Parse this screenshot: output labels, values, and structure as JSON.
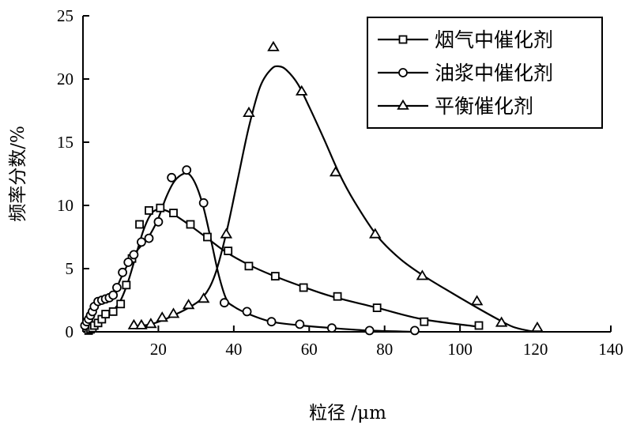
{
  "chart_data": {
    "type": "line",
    "xlabel": "粒径 /μm",
    "ylabel": "频率分数/%",
    "xlim": [
      0,
      140
    ],
    "ylim": [
      0,
      25
    ],
    "x_ticks": [
      20,
      40,
      60,
      80,
      100,
      120,
      140
    ],
    "y_ticks": [
      0,
      5,
      10,
      15,
      20,
      25
    ],
    "grid": false,
    "legend_position": "top-right",
    "series": [
      {
        "name": "烟气中催化剂",
        "marker": "square",
        "x": [
          1.5,
          2,
          2.5,
          3,
          4,
          5,
          6,
          8,
          10,
          11.5,
          13,
          15,
          17.5,
          20.5,
          24,
          28.5,
          33,
          38.5,
          44,
          51,
          58.5,
          67.5,
          78,
          90.5,
          105
        ],
        "y": [
          0.1,
          0.2,
          0.3,
          0.5,
          0.7,
          1.0,
          1.4,
          1.6,
          2.2,
          3.7,
          5.8,
          8.5,
          9.6,
          9.8,
          9.4,
          8.5,
          7.5,
          6.4,
          5.2,
          4.4,
          3.5,
          2.8,
          1.9,
          0.8,
          0.5
        ]
      },
      {
        "name": "油浆中催化剂",
        "marker": "circle",
        "x": [
          0.5,
          1,
          1.5,
          2,
          2.5,
          3,
          4,
          5,
          6,
          7,
          8,
          9,
          10.5,
          12,
          13.5,
          15.5,
          17.5,
          20,
          23.5,
          27.5,
          32,
          37.5,
          43.5,
          50,
          57.5,
          66,
          76,
          88
        ],
        "y": [
          0.5,
          0.8,
          1.0,
          1.3,
          1.6,
          2.0,
          2.4,
          2.5,
          2.6,
          2.7,
          2.9,
          3.5,
          4.7,
          5.5,
          6.1,
          7.1,
          7.4,
          8.7,
          12.2,
          12.8,
          10.2,
          2.3,
          1.6,
          0.8,
          0.6,
          0.3,
          0.1,
          0.1
        ]
      },
      {
        "name": "平衡催化剂",
        "marker": "triangle",
        "x": [
          13.5,
          15.5,
          18,
          21,
          24,
          28,
          32,
          38,
          44,
          50.5,
          58,
          67,
          77.5,
          90,
          104.5,
          111,
          120.5
        ],
        "y": [
          0.5,
          0.5,
          0.6,
          1.1,
          1.4,
          2.1,
          2.6,
          7.7,
          17.3,
          22.5,
          19.0,
          12.6,
          7.7,
          4.4,
          2.4,
          0.7,
          0.3
        ]
      }
    ],
    "smooth_curves": [
      {
        "series": "烟气中催化剂",
        "x": [
          0.5,
          1,
          2,
          3,
          4,
          5,
          6,
          8,
          10,
          12,
          14,
          16,
          18,
          20,
          22,
          24,
          28,
          33,
          38,
          44,
          50,
          58,
          66,
          78,
          90,
          105
        ],
        "y": [
          0,
          0.1,
          0.2,
          0.4,
          0.7,
          1.0,
          1.3,
          1.7,
          2.5,
          4.0,
          6.0,
          8.0,
          9.3,
          9.7,
          9.6,
          9.3,
          8.5,
          7.4,
          6.3,
          5.3,
          4.5,
          3.6,
          2.8,
          1.9,
          1.0,
          0.4
        ]
      },
      {
        "series": "油浆中催化剂",
        "x": [
          0.5,
          1,
          2,
          3,
          4,
          6,
          8,
          10,
          12,
          14,
          16,
          18,
          20,
          22,
          24,
          26,
          28,
          30,
          32,
          34,
          36,
          38,
          40,
          44,
          50,
          58,
          66,
          76,
          88
        ],
        "y": [
          0.3,
          0.6,
          1.2,
          1.9,
          2.3,
          2.6,
          2.9,
          4.2,
          5.4,
          6.3,
          7.0,
          7.8,
          9.0,
          10.6,
          11.8,
          12.4,
          12.5,
          11.6,
          9.8,
          7.2,
          4.5,
          2.6,
          2.0,
          1.4,
          0.8,
          0.5,
          0.3,
          0.1,
          0
        ]
      },
      {
        "series": "平衡催化剂",
        "x": [
          13.5,
          16,
          18,
          21,
          24,
          28,
          32,
          35,
          38,
          41,
          44,
          47,
          50,
          52,
          54,
          57,
          60,
          64,
          68,
          72,
          78,
          84,
          90,
          96,
          104,
          110,
          114,
          118,
          120.5
        ],
        "y": [
          0.4,
          0.5,
          0.6,
          0.9,
          1.3,
          1.9,
          2.8,
          4.5,
          7.8,
          12.0,
          16.2,
          19.4,
          20.8,
          21.0,
          20.7,
          19.6,
          17.8,
          15.2,
          12.5,
          10.3,
          7.6,
          5.8,
          4.5,
          3.4,
          2.0,
          1.0,
          0.4,
          0.1,
          0
        ]
      }
    ]
  }
}
